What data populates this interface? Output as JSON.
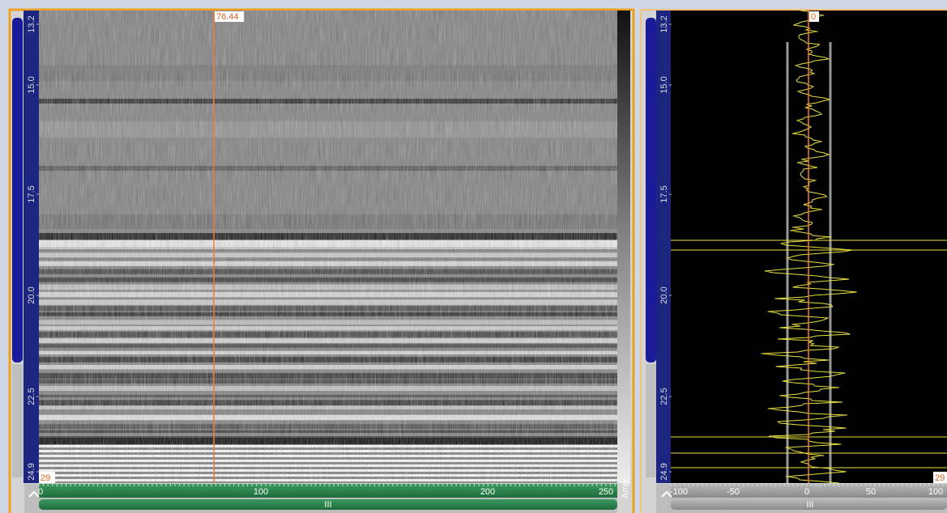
{
  "left_panel": {
    "cursor_label": "76.44",
    "depth_labels": [
      "13.2",
      "15.0",
      "17.5",
      "20.0",
      "22.5",
      "24.9"
    ],
    "corner_label": "29",
    "x_labels": [
      "0",
      "100",
      "200",
      "250"
    ],
    "unit": "Amp"
  },
  "right_panel": {
    "cursor_label": "0",
    "depth_labels": [
      "13.2",
      "15.0",
      "17.5",
      "20.0",
      "22.5",
      "24.9"
    ],
    "corner_label": "29",
    "x_labels": [
      "-100",
      "-50",
      "0",
      "50",
      "100"
    ]
  }
}
